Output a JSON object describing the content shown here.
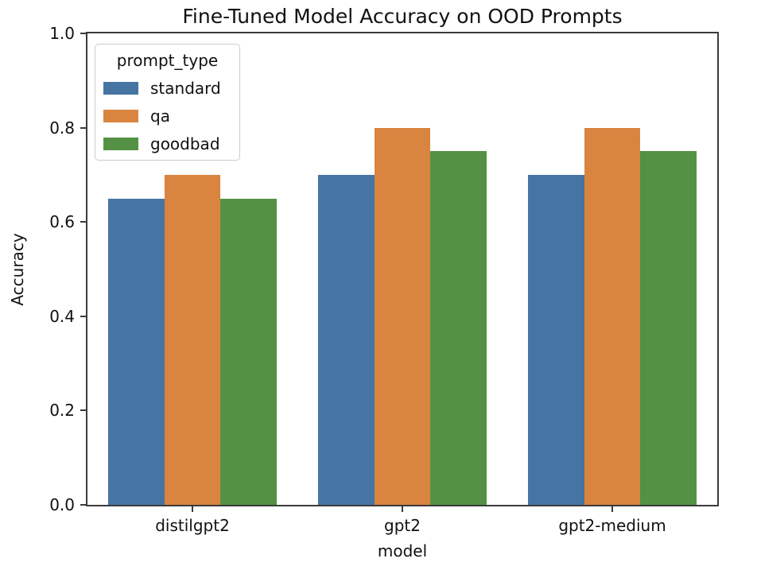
{
  "chart_data": {
    "type": "bar",
    "title": "Fine-Tuned Model Accuracy on OOD Prompts",
    "xlabel": "model",
    "ylabel": "Accuracy",
    "categories": [
      "distilgpt2",
      "gpt2",
      "gpt2-medium"
    ],
    "series": [
      {
        "name": "standard",
        "color": "#4674a3",
        "values": [
          0.65,
          0.7,
          0.7
        ]
      },
      {
        "name": "qa",
        "color": "#d9843f",
        "values": [
          0.7,
          0.8,
          0.8
        ]
      },
      {
        "name": "goodbad",
        "color": "#549144",
        "values": [
          0.65,
          0.75,
          0.75
        ]
      }
    ],
    "ylim": [
      0.0,
      1.0
    ],
    "yticks": [
      "0.0",
      "0.2",
      "0.4",
      "0.6",
      "0.8",
      "1.0"
    ],
    "legend": {
      "title": "prompt_type",
      "position": "upper left"
    },
    "grid": false,
    "group_width_fraction": 0.8,
    "colors": {
      "spine": "#3b3b3b",
      "text": "#111111",
      "legend_border": "#cccccc",
      "background": "#ffffff"
    }
  }
}
